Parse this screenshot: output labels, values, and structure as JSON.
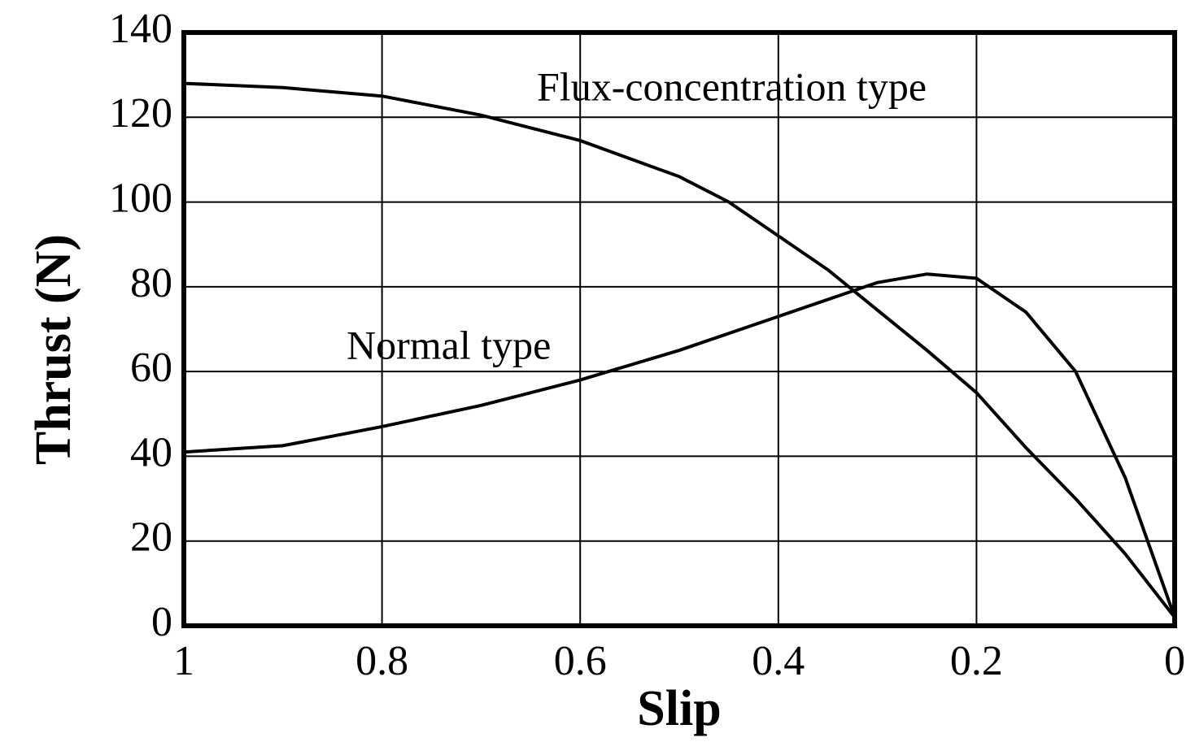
{
  "chart_data": {
    "type": "line",
    "xlabel": "Slip",
    "ylabel": "Thrust (N)",
    "x": [
      1,
      0.9,
      0.8,
      0.7,
      0.6,
      0.5,
      0.45,
      0.4,
      0.35,
      0.3,
      0.25,
      0.2,
      0.15,
      0.1,
      0.05,
      0
    ],
    "series": [
      {
        "color": "#000000",
        "values": [
          128,
          127,
          125,
          120.5,
          114.5,
          106,
          100,
          92,
          84,
          74.5,
          65,
          55,
          42,
          30,
          17,
          2
        ]
      },
      {
        "color": "#000000",
        "values": [
          41,
          42.5,
          47,
          52,
          58,
          65,
          69,
          73,
          77,
          81,
          83,
          82,
          74,
          60,
          35,
          2
        ]
      }
    ],
    "annotations": [
      "Flux-concentration type",
      "Normal type"
    ],
    "xlim": [
      1,
      0
    ],
    "xticks": [
      1,
      0.8,
      0.6,
      0.4,
      0.2,
      0
    ],
    "ylim": [
      0,
      140
    ],
    "yticks": [
      0,
      20,
      40,
      60,
      80,
      100,
      120,
      140
    ],
    "grid": true
  }
}
